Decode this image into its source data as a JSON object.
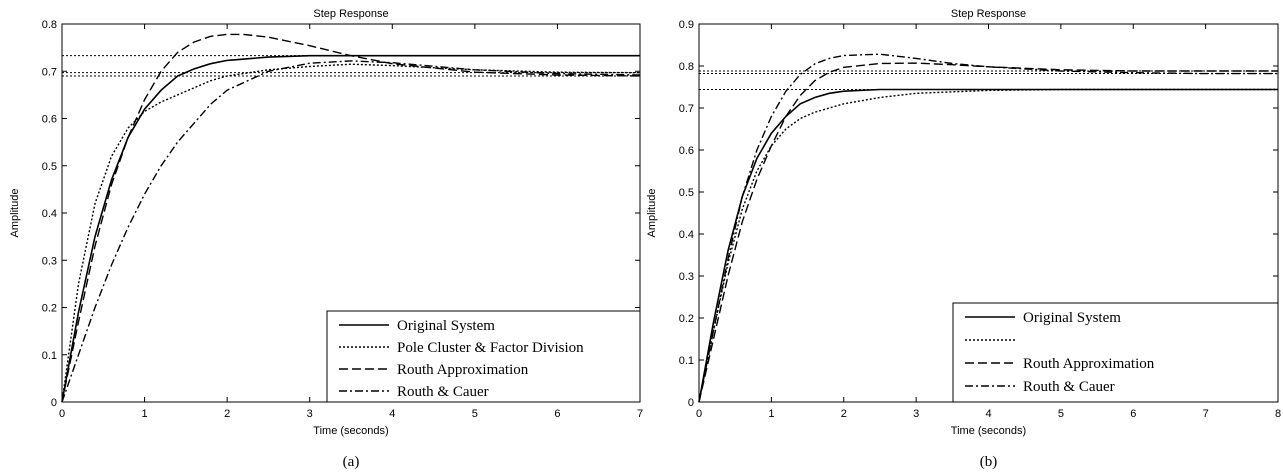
{
  "chart_data": [
    {
      "id": "a",
      "type": "line",
      "title": "Step Response",
      "xlabel": "Time (seconds)",
      "ylabel": "Amplitude",
      "caption": "(a)",
      "xlim": [
        0,
        7
      ],
      "ylim": [
        0,
        0.8
      ],
      "xticks": [
        "0",
        "1",
        "2",
        "3",
        "4",
        "5",
        "6",
        "7"
      ],
      "yticks": [
        "0",
        "0.1",
        "0.2",
        "0.3",
        "0.4",
        "0.5",
        "0.6",
        "0.7",
        "0.8"
      ],
      "grid": false,
      "legend_position": "bottom-right",
      "reference_lines": [
        0.733,
        0.697,
        0.69
      ],
      "series": [
        {
          "name": "Original System",
          "style": "solid",
          "x": [
            0,
            0.2,
            0.4,
            0.6,
            0.8,
            1.0,
            1.2,
            1.4,
            1.6,
            1.8,
            2.0,
            2.5,
            3.0,
            3.5,
            4,
            5,
            6,
            7
          ],
          "y": [
            0,
            0.19,
            0.35,
            0.47,
            0.56,
            0.62,
            0.66,
            0.69,
            0.705,
            0.716,
            0.723,
            0.73,
            0.733,
            0.733,
            0.733,
            0.733,
            0.733,
            0.733
          ]
        },
        {
          "name": "Pole Cluster & Factor Division",
          "style": "dotted",
          "x": [
            0,
            0.2,
            0.4,
            0.6,
            0.8,
            1.0,
            1.2,
            1.4,
            1.6,
            1.8,
            2.0,
            2.5,
            3.0,
            3.5,
            4,
            5,
            6,
            7
          ],
          "y": [
            0,
            0.25,
            0.42,
            0.52,
            0.58,
            0.615,
            0.635,
            0.65,
            0.665,
            0.68,
            0.69,
            0.703,
            0.71,
            0.715,
            0.712,
            0.703,
            0.698,
            0.697
          ]
        },
        {
          "name": "Routh Approximation",
          "style": "dashed",
          "x": [
            0,
            0.2,
            0.4,
            0.6,
            0.8,
            1.0,
            1.2,
            1.4,
            1.6,
            1.8,
            2.0,
            2.2,
            2.5,
            3.0,
            3.5,
            4,
            5,
            6,
            7
          ],
          "y": [
            0,
            0.17,
            0.33,
            0.46,
            0.56,
            0.64,
            0.7,
            0.74,
            0.762,
            0.774,
            0.778,
            0.778,
            0.772,
            0.754,
            0.733,
            0.716,
            0.698,
            0.692,
            0.69
          ]
        },
        {
          "name": "Routh & Cauer",
          "style": "dashdot",
          "x": [
            0,
            0.2,
            0.4,
            0.6,
            0.8,
            1.0,
            1.2,
            1.4,
            1.6,
            1.8,
            2.0,
            2.5,
            3.0,
            3.5,
            4,
            5,
            6,
            7
          ],
          "y": [
            0,
            0.1,
            0.2,
            0.29,
            0.37,
            0.44,
            0.5,
            0.55,
            0.59,
            0.63,
            0.66,
            0.7,
            0.717,
            0.722,
            0.718,
            0.703,
            0.695,
            0.692
          ]
        }
      ]
    },
    {
      "id": "b",
      "type": "line",
      "title": "Step Response",
      "xlabel": "Time (seconds)",
      "ylabel": "Amplitude",
      "caption": "(b)",
      "xlim": [
        0,
        8
      ],
      "ylim": [
        0,
        0.9
      ],
      "xticks": [
        "0",
        "1",
        "2",
        "3",
        "4",
        "5",
        "6",
        "7",
        "8"
      ],
      "yticks": [
        "0",
        "0.1",
        "0.2",
        "0.3",
        "0.4",
        "0.5",
        "0.6",
        "0.7",
        "0.8",
        "0.9"
      ],
      "grid": false,
      "legend_position": "bottom-right",
      "reference_lines": [
        0.788,
        0.782,
        0.744
      ],
      "series": [
        {
          "name": "Original System",
          "style": "solid",
          "x": [
            0,
            0.2,
            0.4,
            0.6,
            0.8,
            1.0,
            1.2,
            1.4,
            1.6,
            1.8,
            2.0,
            2.5,
            3,
            4,
            5,
            6,
            7,
            8
          ],
          "y": [
            0,
            0.19,
            0.36,
            0.49,
            0.58,
            0.64,
            0.68,
            0.71,
            0.725,
            0.735,
            0.74,
            0.744,
            0.744,
            0.744,
            0.744,
            0.744,
            0.744,
            0.744
          ]
        },
        {
          "name": "",
          "style": "dotted",
          "x": [
            0,
            0.2,
            0.4,
            0.6,
            0.8,
            1.0,
            1.2,
            1.4,
            1.6,
            1.8,
            2.0,
            2.5,
            3,
            4,
            5,
            6,
            7,
            8
          ],
          "y": [
            0,
            0.17,
            0.33,
            0.46,
            0.55,
            0.61,
            0.65,
            0.675,
            0.69,
            0.7,
            0.71,
            0.725,
            0.735,
            0.742,
            0.744,
            0.744,
            0.744,
            0.744
          ]
        },
        {
          "name": "Routh Approximation",
          "style": "dashed",
          "x": [
            0,
            0.2,
            0.4,
            0.6,
            0.8,
            1.0,
            1.2,
            1.4,
            1.6,
            1.8,
            2.0,
            2.5,
            3,
            3.5,
            4,
            5,
            6,
            7,
            8
          ],
          "y": [
            0,
            0.15,
            0.3,
            0.43,
            0.53,
            0.61,
            0.68,
            0.73,
            0.765,
            0.785,
            0.797,
            0.806,
            0.807,
            0.803,
            0.798,
            0.791,
            0.788,
            0.788,
            0.788
          ]
        },
        {
          "name": "Routh & Cauer",
          "style": "dashdot",
          "x": [
            0,
            0.2,
            0.4,
            0.6,
            0.8,
            1.0,
            1.2,
            1.4,
            1.6,
            1.8,
            2.0,
            2.5,
            3,
            3.5,
            4,
            5,
            6,
            7,
            8
          ],
          "y": [
            0,
            0.17,
            0.34,
            0.49,
            0.6,
            0.68,
            0.74,
            0.78,
            0.805,
            0.818,
            0.825,
            0.828,
            0.818,
            0.806,
            0.798,
            0.788,
            0.784,
            0.782,
            0.782
          ]
        }
      ]
    }
  ]
}
